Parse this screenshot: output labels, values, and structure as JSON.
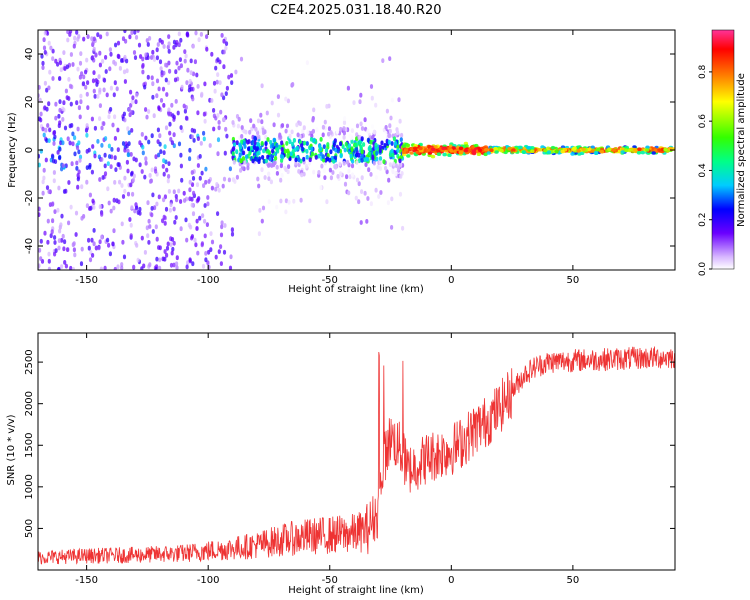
{
  "title": "C2E4.2025.031.18.40.R20",
  "chart_data": [
    {
      "type": "heatmap",
      "xlabel": "Height of straight line (km)",
      "ylabel": "Frequency (Hz)",
      "xlim": [
        -170,
        92
      ],
      "ylim": [
        -50,
        50
      ],
      "xticks": [
        -150,
        -100,
        -50,
        0,
        50
      ],
      "yticks": [
        -40,
        -20,
        0,
        20,
        40
      ],
      "colorbar": {
        "label": "Normalized spectral amplitude",
        "range": [
          0.0,
          0.97
        ],
        "ticks": [
          0.0,
          0.2,
          0.4,
          0.6,
          0.8
        ]
      },
      "ridge": {
        "frequency": 0,
        "segments": [
          {
            "x": [
              -170,
              -90
            ],
            "amplitude": 0.12,
            "spread": 45
          },
          {
            "x": [
              -90,
              -20
            ],
            "amplitude": 0.3,
            "spread": 15
          },
          {
            "x": [
              -20,
              15
            ],
            "amplitude": 0.95,
            "spread": 3
          },
          {
            "x": [
              15,
              92
            ],
            "amplitude": 0.55,
            "spread": 2
          }
        ]
      },
      "grid": false
    },
    {
      "type": "line",
      "xlabel": "Height of straight line (km)",
      "ylabel": "SNR (10 * v/v)",
      "xlim": [
        -170,
        92
      ],
      "ylim": [
        0,
        2850
      ],
      "xticks": [
        -150,
        -100,
        -50,
        0,
        50
      ],
      "yticks": [
        500,
        1000,
        1500,
        2000,
        2500
      ],
      "color": "#ee3333",
      "series": [
        {
          "x": [
            -170,
            -150,
            -130,
            -110,
            -100,
            -90,
            -80,
            -70,
            -60,
            -50,
            -40,
            -35,
            -30,
            -28,
            -25,
            -22,
            -20,
            -18,
            -15,
            -10,
            -5,
            0,
            5,
            10,
            15,
            20,
            25,
            30,
            35,
            40,
            50,
            60,
            70,
            80,
            92
          ],
          "values": [
            150,
            170,
            180,
            200,
            230,
            260,
            300,
            360,
            400,
            420,
            440,
            480,
            700,
            1300,
            1600,
            1500,
            1400,
            1200,
            1250,
            1350,
            1400,
            1450,
            1550,
            1700,
            1800,
            1950,
            2150,
            2350,
            2450,
            2500,
            2520,
            2530,
            2540,
            2550,
            2560
          ]
        }
      ],
      "grid": false
    }
  ]
}
